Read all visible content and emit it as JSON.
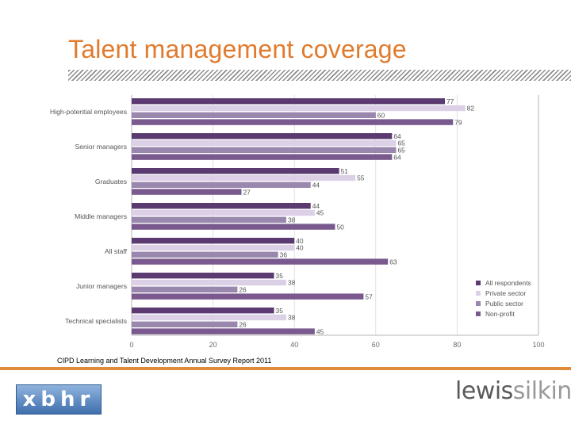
{
  "slide": {
    "title": "Talent management coverage",
    "source": "CIPD Learning and Talent Development Annual Survey Report 2011"
  },
  "logos": {
    "left": "xbhr",
    "right_part1": "lewis",
    "right_part2": "silkin"
  },
  "colors": {
    "title": "#e07b2e",
    "accent_line": "#e08a3c",
    "series": [
      "#5a3a70",
      "#dcd0e6",
      "#9a87ad",
      "#7a5a8e"
    ]
  },
  "chart_data": {
    "type": "bar",
    "orientation": "horizontal",
    "categories": [
      "High-potential employees",
      "Senior managers",
      "Graduates",
      "Middle managers",
      "All staff",
      "Junior managers",
      "Technical specialists"
    ],
    "series": [
      {
        "name": "All respondents",
        "values": [
          77,
          64,
          51,
          44,
          40,
          35,
          35
        ]
      },
      {
        "name": "Private sector",
        "values": [
          82,
          65,
          55,
          45,
          40,
          38,
          38
        ]
      },
      {
        "name": "Public sector",
        "values": [
          60,
          65,
          44,
          38,
          36,
          26,
          26
        ]
      },
      {
        "name": "Non-profit",
        "values": [
          79,
          64,
          27,
          50,
          63,
          57,
          45
        ]
      }
    ],
    "xlim": [
      0,
      100
    ],
    "xticks": [
      "0",
      "20",
      "40",
      "60",
      "80",
      "100"
    ],
    "legend_position": "bottom-right",
    "grid": true
  }
}
